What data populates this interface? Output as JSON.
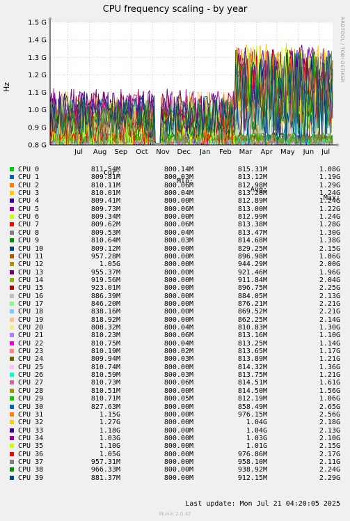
{
  "chart_data": {
    "type": "line",
    "title": "CPU frequency scaling - by year",
    "ylabel": "Hz",
    "ylim": [
      0.8,
      1.5
    ],
    "yticks": [
      {
        "v": 0.8,
        "label": "0.8 G"
      },
      {
        "v": 0.9,
        "label": "0.9 G"
      },
      {
        "v": 1.0,
        "label": "1.0 G"
      },
      {
        "v": 1.1,
        "label": "1.1 G"
      },
      {
        "v": 1.2,
        "label": "1.2 G"
      },
      {
        "v": 1.3,
        "label": "1.3 G"
      },
      {
        "v": 1.4,
        "label": "1.4 G"
      },
      {
        "v": 1.5,
        "label": "1.5 G"
      }
    ],
    "xlim": [
      "2024-06-05",
      "2025-07-21"
    ],
    "xticks": [
      {
        "d": "2024-07-01",
        "label": "Jul"
      },
      {
        "d": "2024-08-01",
        "label": "Aug"
      },
      {
        "d": "2024-09-01",
        "label": "Sep"
      },
      {
        "d": "2024-10-01",
        "label": "Oct"
      },
      {
        "d": "2024-11-01",
        "label": "Nov"
      },
      {
        "d": "2024-12-01",
        "label": "Dec"
      },
      {
        "d": "2025-01-01",
        "label": "Jan"
      },
      {
        "d": "2025-02-01",
        "label": "Feb"
      },
      {
        "d": "2025-03-01",
        "label": "Mar"
      },
      {
        "d": "2025-04-01",
        "label": "Apr"
      },
      {
        "d": "2025-05-01",
        "label": "May"
      },
      {
        "d": "2025-06-01",
        "label": "Jun"
      },
      {
        "d": "2025-07-01",
        "label": "Jul"
      }
    ],
    "grid": true,
    "columns": [
      "Cur:",
      "Min:",
      "Avg:",
      "Max:"
    ],
    "series": [
      {
        "name": "CPU 0",
        "color": "#00cc00",
        "cur": "811.54M",
        "min": "800.14M",
        "avg": "815.31M",
        "max": "1.08G"
      },
      {
        "name": "CPU 1",
        "color": "#0066b3",
        "cur": "809.81M",
        "min": "800.03M",
        "avg": "813.12M",
        "max": "1.19G"
      },
      {
        "name": "CPU 2",
        "color": "#ff8000",
        "cur": "810.11M",
        "min": "800.06M",
        "avg": "812.98M",
        "max": "1.29G"
      },
      {
        "name": "CPU 3",
        "color": "#ffcc00",
        "cur": "810.01M",
        "min": "800.04M",
        "avg": "813.20M",
        "max": "1.24G"
      },
      {
        "name": "CPU 4",
        "color": "#330099",
        "cur": "809.41M",
        "min": "800.00M",
        "avg": "812.89M",
        "max": "1.24G"
      },
      {
        "name": "CPU 5",
        "color": "#990099",
        "cur": "809.73M",
        "min": "800.06M",
        "avg": "813.00M",
        "max": "1.22G"
      },
      {
        "name": "CPU 6",
        "color": "#ccff00",
        "cur": "809.34M",
        "min": "800.00M",
        "avg": "812.99M",
        "max": "1.24G"
      },
      {
        "name": "CPU 7",
        "color": "#ff0000",
        "cur": "809.62M",
        "min": "800.06M",
        "avg": "813.38M",
        "max": "1.28G"
      },
      {
        "name": "CPU 8",
        "color": "#808080",
        "cur": "809.53M",
        "min": "800.04M",
        "avg": "813.47M",
        "max": "1.30G"
      },
      {
        "name": "CPU 9",
        "color": "#008f00",
        "cur": "810.64M",
        "min": "800.03M",
        "avg": "814.68M",
        "max": "1.38G"
      },
      {
        "name": "CPU 10",
        "color": "#00487d",
        "cur": "809.12M",
        "min": "800.00M",
        "avg": "829.25M",
        "max": "2.15G"
      },
      {
        "name": "CPU 11",
        "color": "#b35a00",
        "cur": "957.28M",
        "min": "800.00M",
        "avg": "896.98M",
        "max": "1.86G"
      },
      {
        "name": "CPU 12",
        "color": "#b38f00",
        "cur": "1.05G",
        "min": "800.00M",
        "avg": "944.29M",
        "max": "2.00G"
      },
      {
        "name": "CPU 13",
        "color": "#6b006b",
        "cur": "955.37M",
        "min": "800.00M",
        "avg": "921.46M",
        "max": "1.96G"
      },
      {
        "name": "CPU 14",
        "color": "#8fb300",
        "cur": "919.56M",
        "min": "800.00M",
        "avg": "911.84M",
        "max": "2.04G"
      },
      {
        "name": "CPU 15",
        "color": "#b30000",
        "cur": "923.01M",
        "min": "800.00M",
        "avg": "896.75M",
        "max": "2.25G"
      },
      {
        "name": "CPU 16",
        "color": "#bebebe",
        "cur": "886.39M",
        "min": "800.00M",
        "avg": "884.05M",
        "max": "2.13G"
      },
      {
        "name": "CPU 17",
        "color": "#80ff80",
        "cur": "846.20M",
        "min": "800.00M",
        "avg": "876.21M",
        "max": "2.21G"
      },
      {
        "name": "CPU 18",
        "color": "#80c9ff",
        "cur": "838.16M",
        "min": "800.00M",
        "avg": "869.52M",
        "max": "2.21G"
      },
      {
        "name": "CPU 19",
        "color": "#ffc080",
        "cur": "818.92M",
        "min": "800.00M",
        "avg": "862.25M",
        "max": "2.14G"
      },
      {
        "name": "CPU 20",
        "color": "#ffe680",
        "cur": "808.32M",
        "min": "800.04M",
        "avg": "810.83M",
        "max": "1.30G"
      },
      {
        "name": "CPU 21",
        "color": "#aa80ff",
        "cur": "810.23M",
        "min": "800.06M",
        "avg": "813.16M",
        "max": "1.10G"
      },
      {
        "name": "CPU 22",
        "color": "#ee00cc",
        "cur": "810.75M",
        "min": "800.04M",
        "avg": "813.25M",
        "max": "1.14G"
      },
      {
        "name": "CPU 23",
        "color": "#ff8080",
        "cur": "810.19M",
        "min": "800.02M",
        "avg": "813.65M",
        "max": "1.17G"
      },
      {
        "name": "CPU 24",
        "color": "#666600",
        "cur": "809.94M",
        "min": "800.03M",
        "avg": "813.89M",
        "max": "1.21G"
      },
      {
        "name": "CPU 25",
        "color": "#ffbfff",
        "cur": "810.74M",
        "min": "800.00M",
        "avg": "814.32M",
        "max": "1.36G"
      },
      {
        "name": "CPU 26",
        "color": "#00ffcc",
        "cur": "810.59M",
        "min": "800.03M",
        "avg": "813.75M",
        "max": "1.21G"
      },
      {
        "name": "CPU 27",
        "color": "#cc6699",
        "cur": "810.73M",
        "min": "800.06M",
        "avg": "814.51M",
        "max": "1.61G"
      },
      {
        "name": "CPU 28",
        "color": "#999900",
        "cur": "810.51M",
        "min": "800.00M",
        "avg": "814.50M",
        "max": "1.56G"
      },
      {
        "name": "CPU 29",
        "color": "#00cc00",
        "cur": "810.71M",
        "min": "800.05M",
        "avg": "812.19M",
        "max": "1.06G"
      },
      {
        "name": "CPU 30",
        "color": "#0066b3",
        "cur": "827.63M",
        "min": "800.00M",
        "avg": "858.49M",
        "max": "2.65G"
      },
      {
        "name": "CPU 31",
        "color": "#ff8000",
        "cur": "1.15G",
        "min": "800.00M",
        "avg": "976.15M",
        "max": "2.56G"
      },
      {
        "name": "CPU 32",
        "color": "#ffcc00",
        "cur": "1.27G",
        "min": "800.00M",
        "avg": "1.04G",
        "max": "2.18G"
      },
      {
        "name": "CPU 33",
        "color": "#330099",
        "cur": "1.18G",
        "min": "800.00M",
        "avg": "1.04G",
        "max": "2.13G"
      },
      {
        "name": "CPU 34",
        "color": "#990099",
        "cur": "1.03G",
        "min": "800.00M",
        "avg": "1.03G",
        "max": "2.10G"
      },
      {
        "name": "CPU 35",
        "color": "#ccff00",
        "cur": "1.10G",
        "min": "800.00M",
        "avg": "1.01G",
        "max": "2.15G"
      },
      {
        "name": "CPU 36",
        "color": "#ff0000",
        "cur": "1.05G",
        "min": "800.00M",
        "avg": "976.86M",
        "max": "2.17G"
      },
      {
        "name": "CPU 37",
        "color": "#808080",
        "cur": "957.31M",
        "min": "800.00M",
        "avg": "958.10M",
        "max": "2.11G"
      },
      {
        "name": "CPU 38",
        "color": "#008f00",
        "cur": "966.33M",
        "min": "800.00M",
        "avg": "938.92M",
        "max": "2.24G"
      },
      {
        "name": "CPU 39",
        "color": "#00487d",
        "cur": "881.37M",
        "min": "800.00M",
        "avg": "912.15M",
        "max": "2.29G"
      }
    ]
  },
  "watermark": "RRDTOOL / TOBI OETIKER",
  "last_update": "Last update: Mon Jul 21 04:20:05 2025",
  "footer": "Munin 2.0.42"
}
